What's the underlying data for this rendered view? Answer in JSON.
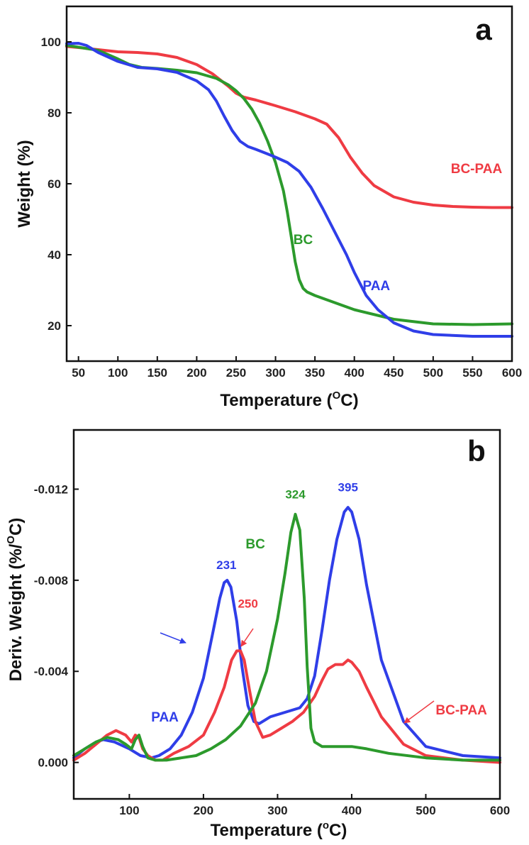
{
  "chart_data": [
    {
      "type": "line",
      "panel_label": "a",
      "title": "",
      "xlabel": "Temperature (",
      "xlabel_sup": "O",
      "xlabel_end": "C)",
      "ylabel": "Weight (%)",
      "xlim": [
        35,
        600
      ],
      "ylim": [
        10,
        110
      ],
      "xticks": [
        50,
        100,
        150,
        200,
        250,
        300,
        350,
        400,
        450,
        500,
        550,
        600
      ],
      "yticks": [
        20,
        40,
        60,
        80,
        100
      ],
      "xtick_labels": [
        "50",
        "100",
        "150",
        "200",
        "250",
        "300",
        "350",
        "400",
        "450",
        "500",
        "550",
        "600"
      ],
      "ytick_labels": [
        "20",
        "40",
        "60",
        "80",
        "100"
      ],
      "series": [
        {
          "name": "BC-PAA",
          "color": "#ef3b43",
          "label_at": [
            555,
            63
          ],
          "x": [
            35,
            50,
            75,
            100,
            125,
            150,
            175,
            200,
            220,
            240,
            250,
            260,
            275,
            300,
            325,
            350,
            365,
            380,
            395,
            410,
            425,
            450,
            475,
            500,
            525,
            550,
            575,
            600
          ],
          "y": [
            98.7,
            98.4,
            97.8,
            97.2,
            97.0,
            96.6,
            95.6,
            93.6,
            91.0,
            87.5,
            85.5,
            84.4,
            83.6,
            82.0,
            80.3,
            78.3,
            76.8,
            73.0,
            67.5,
            63.0,
            59.5,
            56.3,
            54.8,
            54.0,
            53.6,
            53.4,
            53.3,
            53.3
          ]
        },
        {
          "name": "BC",
          "color": "#2c9a2c",
          "label_at": [
            335,
            43
          ],
          "x": [
            35,
            50,
            75,
            100,
            115,
            130,
            150,
            175,
            200,
            225,
            240,
            250,
            260,
            270,
            280,
            290,
            300,
            310,
            315,
            320,
            325,
            330,
            335,
            340,
            350,
            375,
            400,
            450,
            500,
            550,
            600
          ],
          "y": [
            99.0,
            98.5,
            97.6,
            95.2,
            93.6,
            92.8,
            92.5,
            92.0,
            91.3,
            89.7,
            87.9,
            86.2,
            84.0,
            81.0,
            77.0,
            72.0,
            66.0,
            58.0,
            52.0,
            45.0,
            38.0,
            33.0,
            30.5,
            29.5,
            28.5,
            26.5,
            24.5,
            21.8,
            20.5,
            20.3,
            20.5
          ]
        },
        {
          "name": "PAA",
          "color": "#2f3ee8",
          "label_at": [
            428,
            30
          ],
          "x": [
            35,
            50,
            60,
            75,
            100,
            125,
            150,
            175,
            200,
            215,
            225,
            235,
            245,
            255,
            265,
            275,
            290,
            300,
            315,
            330,
            345,
            360,
            375,
            390,
            400,
            415,
            430,
            450,
            475,
            500,
            550,
            600
          ],
          "y": [
            99.5,
            99.6,
            99.0,
            97.0,
            94.5,
            92.8,
            92.4,
            91.4,
            89.0,
            86.5,
            83.3,
            79.0,
            75.0,
            72.0,
            70.5,
            69.7,
            68.4,
            67.5,
            66.0,
            63.5,
            59.0,
            53.0,
            46.5,
            40.0,
            35.0,
            28.5,
            24.5,
            20.8,
            18.5,
            17.5,
            17.0,
            17.0
          ]
        }
      ]
    },
    {
      "type": "line",
      "panel_label": "b",
      "title": "",
      "xlabel": "Temperature (",
      "xlabel_sup": "o",
      "xlabel_end": "C)",
      "ylabel": "Deriv. Weight (%/",
      "ylabel_sup": "O",
      "ylabel_end": "C)",
      "xlim": [
        25,
        600
      ],
      "ylim": [
        0.0016,
        -0.0146
      ],
      "xticks": [
        100,
        200,
        300,
        400,
        500,
        600
      ],
      "yticks": [
        0,
        -0.004,
        -0.008,
        -0.012
      ],
      "xtick_labels": [
        "100",
        "200",
        "300",
        "400",
        "500",
        "600"
      ],
      "ytick_labels": [
        "0.000",
        "-0.004",
        "-0.008",
        "-0.012"
      ],
      "series": [
        {
          "name": "PAA",
          "color": "#2f3ee8",
          "label_at": [
            148,
            -0.0018
          ],
          "x": [
            25,
            40,
            55,
            65,
            80,
            100,
            115,
            130,
            140,
            155,
            170,
            185,
            200,
            212,
            222,
            228,
            232,
            237,
            245,
            252,
            260,
            268,
            275,
            290,
            310,
            330,
            340,
            350,
            360,
            370,
            380,
            390,
            395,
            400,
            410,
            420,
            440,
            470,
            500,
            550,
            600
          ],
          "y": [
            -0.0002,
            -0.0006,
            -0.0009,
            -0.001,
            -0.0009,
            -0.0006,
            -0.0003,
            -0.0002,
            -0.0003,
            -0.0006,
            -0.0012,
            -0.0022,
            -0.0037,
            -0.0056,
            -0.0072,
            -0.0079,
            -0.008,
            -0.0077,
            -0.0062,
            -0.0042,
            -0.0025,
            -0.0018,
            -0.0017,
            -0.002,
            -0.0022,
            -0.0024,
            -0.0028,
            -0.0038,
            -0.0058,
            -0.008,
            -0.0098,
            -0.011,
            -0.0112,
            -0.011,
            -0.0098,
            -0.0078,
            -0.0045,
            -0.0018,
            -0.0007,
            -0.0003,
            -0.0002
          ]
        },
        {
          "name": "BC-PAA",
          "color": "#ef3b43",
          "label_at": [
            548,
            -0.0021
          ],
          "x": [
            25,
            40,
            55,
            70,
            82,
            95,
            103,
            108,
            113,
            118,
            125,
            135,
            145,
            160,
            180,
            200,
            215,
            228,
            238,
            245,
            250,
            255,
            262,
            270,
            280,
            290,
            305,
            320,
            335,
            350,
            360,
            368,
            378,
            388,
            395,
            400,
            410,
            420,
            440,
            470,
            500,
            550,
            600
          ],
          "y": [
            -0.0001,
            -0.0004,
            -0.0008,
            -0.0012,
            -0.0014,
            -0.0012,
            -0.0009,
            -0.0012,
            -0.0011,
            -0.0006,
            -0.0003,
            -0.0001,
            -0.0001,
            -0.0004,
            -0.0007,
            -0.0012,
            -0.0022,
            -0.0033,
            -0.0045,
            -0.0049,
            -0.0049,
            -0.0045,
            -0.0032,
            -0.0018,
            -0.0011,
            -0.0012,
            -0.0015,
            -0.0018,
            -0.0022,
            -0.0029,
            -0.0036,
            -0.0041,
            -0.0043,
            -0.0043,
            -0.0045,
            -0.0044,
            -0.004,
            -0.0033,
            -0.002,
            -0.0008,
            -0.0003,
            -0.0001,
            0.0
          ]
        },
        {
          "name": "BC",
          "color": "#2c9a2c",
          "label_at": [
            270,
            -0.0094
          ],
          "x": [
            25,
            40,
            55,
            70,
            85,
            95,
            103,
            108,
            113,
            118,
            125,
            135,
            150,
            170,
            190,
            210,
            230,
            250,
            270,
            285,
            300,
            310,
            318,
            324,
            330,
            336,
            340,
            345,
            350,
            360,
            380,
            400,
            420,
            450,
            500,
            550,
            600
          ],
          "y": [
            -0.0003,
            -0.0006,
            -0.0009,
            -0.0011,
            -0.001,
            -0.0008,
            -0.0006,
            -0.001,
            -0.0012,
            -0.0007,
            -0.0002,
            -0.0001,
            -0.0001,
            -0.0002,
            -0.0003,
            -0.0006,
            -0.001,
            -0.0016,
            -0.0026,
            -0.004,
            -0.0063,
            -0.0083,
            -0.0101,
            -0.0109,
            -0.0102,
            -0.0072,
            -0.0042,
            -0.0015,
            -0.0009,
            -0.0007,
            -0.0007,
            -0.0007,
            -0.0006,
            -0.0004,
            -0.0002,
            -0.0001,
            -0.0001
          ]
        }
      ],
      "peak_labels": [
        {
          "text": "231",
          "x": 231,
          "y": -0.0085,
          "color": "#2f3ee8"
        },
        {
          "text": "250",
          "x": 260,
          "y": -0.0068,
          "color": "#ef3b43"
        },
        {
          "text": "324",
          "x": 324,
          "y": -0.0116,
          "color": "#2c9a2c"
        },
        {
          "text": "395",
          "x": 395,
          "y": -0.0119,
          "color": "#2f3ee8"
        }
      ]
    }
  ]
}
